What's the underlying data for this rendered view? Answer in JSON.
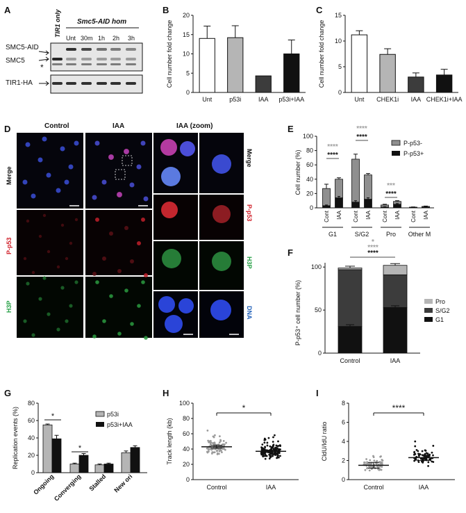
{
  "colors": {
    "white": "#ffffff",
    "light_gray": "#b5b5b5",
    "mid_gray": "#8f8f8f",
    "dark_gray": "#3c3c3c",
    "black": "#111111",
    "red_label": "#d0202a",
    "green_label": "#25a045",
    "blue_label": "#1f5fb8",
    "sig_gray": "#a0a0a0"
  },
  "panels": {
    "A": {
      "letter": "A",
      "cond_header_1": "TIR1 only",
      "cond_header_2": "Smc5-AID hom",
      "lanes": [
        "Unt",
        "30m",
        "1h",
        "2h",
        "3h"
      ],
      "labels": [
        "SMC5-AID",
        "SMC5",
        "*",
        "TIR1-HA"
      ]
    },
    "B": {
      "letter": "B"
    },
    "C": {
      "letter": "C"
    },
    "D": {
      "letter": "D",
      "col_headers": [
        "Control",
        "IAA",
        "IAA (zoom)"
      ],
      "row_labels_left": [
        "Merge",
        "P-p53",
        "H3P"
      ],
      "row_labels_right": [
        "Merge",
        "P-p53",
        "H3P",
        "DNA"
      ]
    },
    "E": {
      "letter": "E"
    },
    "F": {
      "letter": "F"
    },
    "G": {
      "letter": "G"
    },
    "H": {
      "letter": "H"
    },
    "I": {
      "letter": "I"
    }
  },
  "chart_data": [
    {
      "id": "B",
      "type": "bar",
      "ylabel": "Cell number fold change",
      "ylim": [
        0,
        20
      ],
      "yticks": [
        0,
        5,
        10,
        15,
        20
      ],
      "categories": [
        "Unt",
        "p53i",
        "IAA",
        "p53i+IAA"
      ],
      "values": [
        14,
        14.2,
        4.3,
        10
      ],
      "errors": [
        3.2,
        3.1,
        0,
        3.6
      ],
      "bar_colors": [
        "#ffffff",
        "#b5b5b5",
        "#3c3c3c",
        "#111111"
      ]
    },
    {
      "id": "C",
      "type": "bar",
      "ylabel": "Cell number fold change",
      "ylim": [
        0,
        15
      ],
      "yticks": [
        0,
        5,
        10,
        15
      ],
      "categories": [
        "Unt",
        "CHEK1i",
        "IAA",
        "CHEK1i+IAA"
      ],
      "values": [
        11.2,
        7.4,
        3,
        3.4
      ],
      "errors": [
        0.8,
        1.1,
        0.8,
        1.1
      ],
      "bar_colors": [
        "#ffffff",
        "#b5b5b5",
        "#3c3c3c",
        "#111111"
      ]
    },
    {
      "id": "E",
      "type": "bar",
      "ylabel": "Cell number (%)",
      "ylim": [
        0,
        100
      ],
      "yticks": [
        0,
        20,
        40,
        60,
        80,
        100
      ],
      "categories": [
        "Cont",
        "IAA",
        "Cont",
        "IAA",
        "Cont",
        "IAA",
        "Cont",
        "IAA"
      ],
      "groups": [
        "G1",
        "S/G2",
        "Pro",
        "Other M"
      ],
      "series": [
        {
          "name": "P-p53+",
          "values": [
            3,
            14,
            8,
            12,
            1,
            5,
            0.5,
            1
          ],
          "errors": [
            1,
            2,
            2,
            2,
            0.5,
            1,
            0.3,
            0.5
          ]
        },
        {
          "name": "P-p53-",
          "values": [
            24,
            26,
            60,
            34,
            3,
            4,
            0.5,
            1
          ],
          "errors": [
            6,
            2,
            7,
            2,
            1,
            1,
            0.3,
            0.5
          ]
        }
      ],
      "significance": [
        {
          "label": "****",
          "color": "#a0a0a0"
        },
        {
          "label": "****",
          "color": "#111111"
        },
        {
          "label": "****",
          "color": "#a0a0a0"
        },
        {
          "label": "****",
          "color": "#111111"
        },
        {
          "label": "***",
          "color": "#a0a0a0"
        },
        {
          "label": "****",
          "color": "#111111"
        }
      ]
    },
    {
      "id": "F",
      "type": "bar",
      "ylabel": "P-p53⁺ cell number (%)",
      "ylim": [
        0,
        100
      ],
      "yticks": [
        0,
        50,
        100
      ],
      "categories": [
        "Control",
        "IAA"
      ],
      "series": [
        {
          "name": "G1",
          "values": [
            31,
            53
          ]
        },
        {
          "name": "S/G2",
          "values": [
            66,
            38
          ]
        },
        {
          "name": "Pro",
          "values": [
            2,
            11
          ]
        }
      ],
      "significance": [
        {
          "label": "*",
          "color": "#a0a0a0"
        },
        {
          "label": "****",
          "color": "#a0a0a0"
        },
        {
          "label": "****",
          "color": "#111111"
        }
      ]
    },
    {
      "id": "G",
      "type": "bar",
      "ylabel": "Replication events (%)",
      "ylim": [
        0,
        80
      ],
      "yticks": [
        0,
        20,
        40,
        60,
        80
      ],
      "categories": [
        "Ongoing",
        "Converging",
        "Stalled",
        "New ori"
      ],
      "series": [
        {
          "name": "p53i",
          "values": [
            55,
            10,
            9,
            23
          ],
          "errors": [
            1,
            1,
            1,
            2
          ]
        },
        {
          "name": "p53i+IAA",
          "values": [
            39,
            20,
            10,
            29
          ],
          "errors": [
            4,
            2,
            1,
            2
          ]
        }
      ],
      "significance": [
        "*",
        "*"
      ]
    },
    {
      "id": "H",
      "type": "scatter",
      "ylabel": "Track length (kb)",
      "ylim": [
        0,
        100
      ],
      "yticks": [
        0,
        20,
        40,
        60,
        80,
        100
      ],
      "categories": [
        "Control",
        "IAA"
      ],
      "means": [
        43,
        37
      ],
      "sem": [
        2,
        1.5
      ],
      "significance": "*"
    },
    {
      "id": "I",
      "type": "scatter",
      "ylabel": "CldU/IdU ratio",
      "ylim": [
        0,
        8
      ],
      "yticks": [
        0,
        2,
        4,
        6,
        8
      ],
      "categories": [
        "Control",
        "IAA"
      ],
      "means": [
        1.5,
        2.3
      ],
      "sem": [
        0.3,
        0.3
      ],
      "significance": "****"
    }
  ]
}
